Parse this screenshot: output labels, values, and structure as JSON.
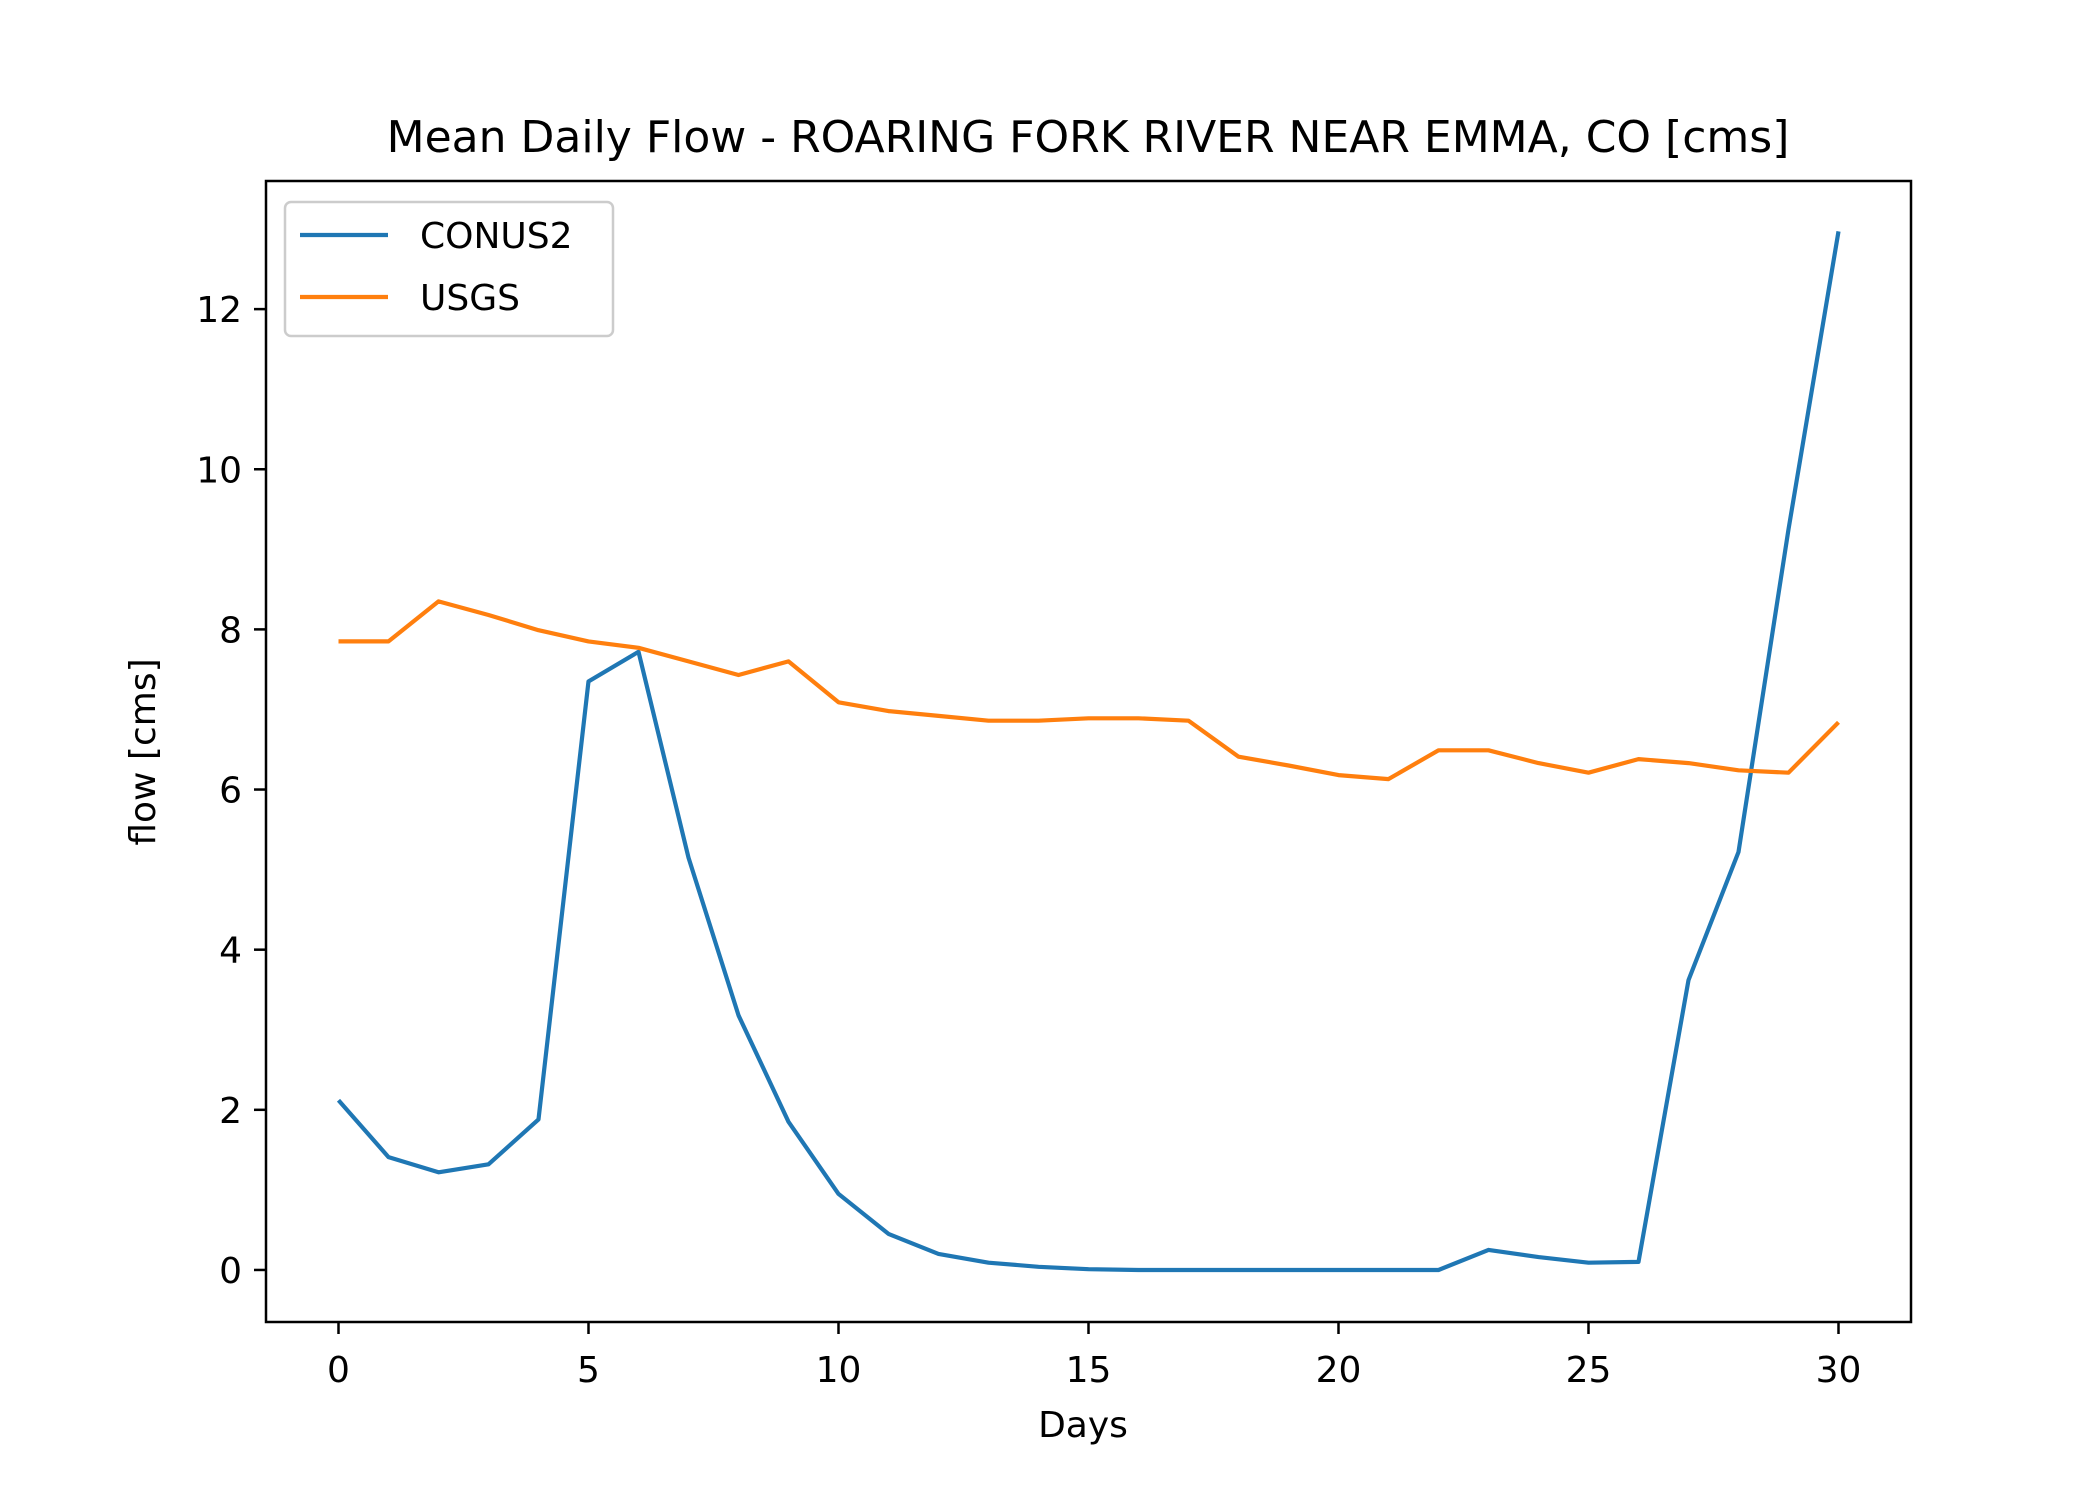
{
  "chart_data": {
    "type": "line",
    "title": "Mean Daily Flow - ROARING FORK RIVER NEAR EMMA, CO [cms]",
    "xlabel": "Days",
    "ylabel": "flow [cms]",
    "xlim": [
      -1.45,
      31.45
    ],
    "ylim": [
      -0.65,
      13.6
    ],
    "xticks": [
      0,
      5,
      10,
      15,
      20,
      25,
      30
    ],
    "yticks": [
      0,
      2,
      4,
      6,
      8,
      10,
      12
    ],
    "grid": false,
    "legend_position": "upper left",
    "x": [
      0,
      1,
      2,
      3,
      4,
      5,
      6,
      7,
      8,
      9,
      10,
      11,
      12,
      13,
      14,
      15,
      16,
      17,
      18,
      19,
      20,
      21,
      22,
      23,
      24,
      25,
      26,
      27,
      28,
      29,
      30
    ],
    "series": [
      {
        "name": "CONUS2",
        "color": "#1f77b4",
        "values": [
          2.12,
          1.41,
          1.22,
          1.32,
          1.88,
          7.35,
          7.72,
          5.15,
          3.18,
          1.85,
          0.95,
          0.45,
          0.2,
          0.09,
          0.04,
          0.01,
          0.0,
          0.0,
          0.0,
          0.0,
          0.0,
          0.0,
          0.0,
          0.25,
          0.16,
          0.09,
          0.1,
          3.62,
          5.22,
          9.25,
          12.97
        ]
      },
      {
        "name": "USGS",
        "color": "#ff7f0e",
        "values": [
          7.85,
          7.85,
          8.35,
          8.18,
          7.99,
          7.85,
          7.77,
          7.6,
          7.43,
          7.6,
          7.09,
          6.98,
          6.92,
          6.86,
          6.86,
          6.89,
          6.89,
          6.86,
          6.41,
          6.3,
          6.18,
          6.13,
          6.49,
          6.49,
          6.33,
          6.21,
          6.38,
          6.33,
          6.24,
          6.21,
          6.84
        ]
      }
    ]
  }
}
